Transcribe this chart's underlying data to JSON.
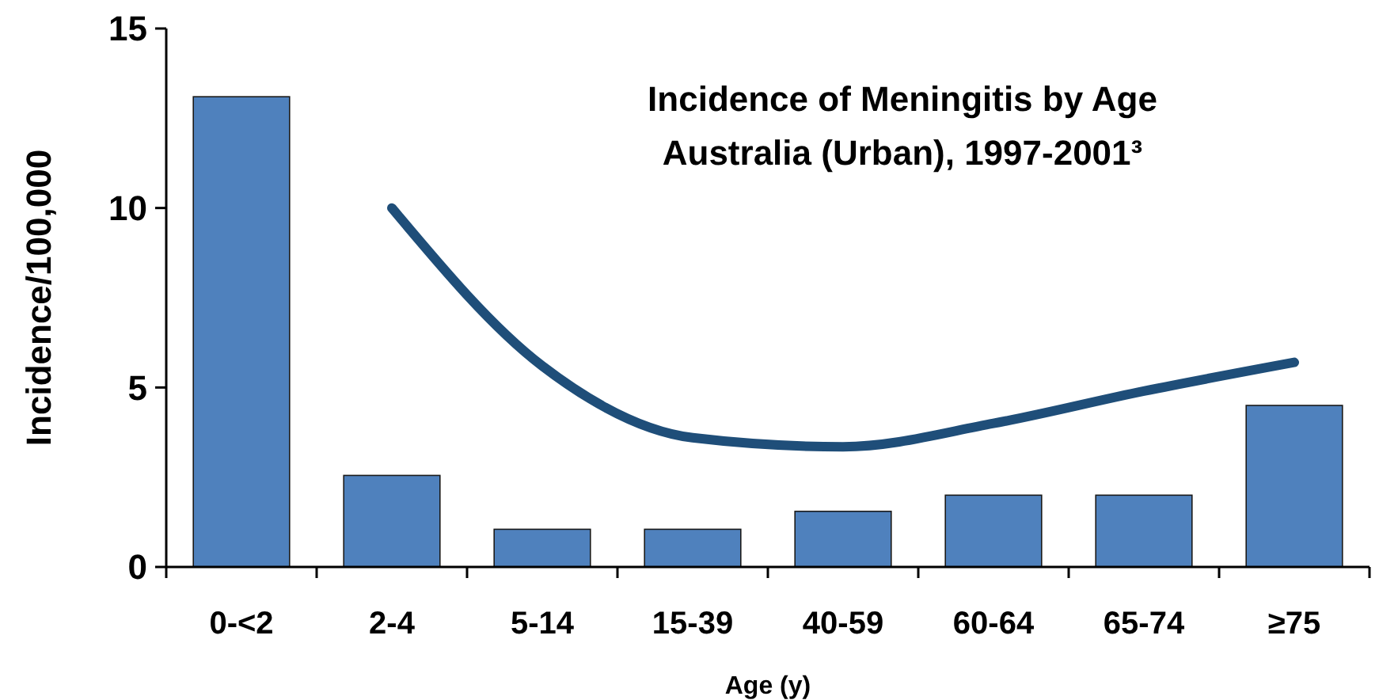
{
  "chart_data": {
    "type": "bar",
    "title": "Incidence of Meningitis by Age",
    "subtitle": "Australia (Urban), 1997-2001³",
    "xlabel": "Age (y)",
    "ylabel": "Incidence/100,000",
    "categories": [
      "0-<2",
      "2-4",
      "5-14",
      "15-39",
      "40-59",
      "60-64",
      "65-74",
      "≥75"
    ],
    "series": [
      {
        "color": "#4f81bd",
        "values": [
          13.1,
          2.55,
          1.05,
          1.05,
          1.55,
          2.0,
          2.0,
          4.5
        ]
      },
      {
        "type": "line",
        "color": "#1f4e79",
        "values": [
          null,
          10.0,
          5.6,
          3.6,
          3.35,
          4.0,
          4.9,
          5.7
        ]
      }
    ],
    "ylim": [
      0,
      15
    ],
    "yticks": [
      0,
      5,
      10,
      15
    ],
    "grid": false
  }
}
